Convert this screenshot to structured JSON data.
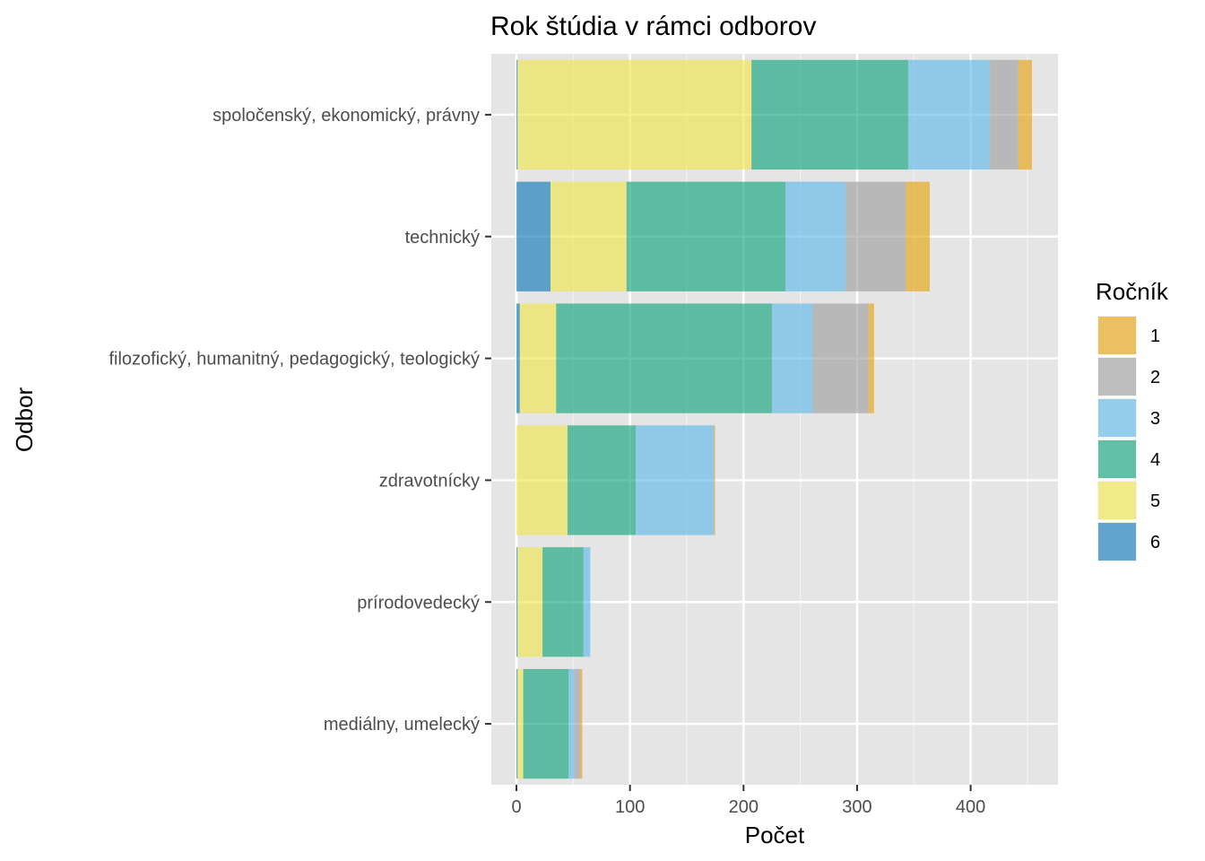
{
  "chart_data": {
    "type": "bar",
    "orientation": "horizontal",
    "stacked": true,
    "title": "Rok štúdia v rámci odborov",
    "xlabel": "Počet",
    "ylabel": "Odbor",
    "xlim": [
      0,
      475
    ],
    "x_ticks": [
      0,
      100,
      200,
      300,
      400
    ],
    "grid": true,
    "categories": [
      "spoločenský, ekonomický, právny",
      "technický",
      "filozofický, humanitný, pedagogický, teologický",
      "zdravotnícky",
      "prírodovedecký",
      "mediálny, umelecký"
    ],
    "stack_order": [
      "6",
      "5",
      "4",
      "3",
      "2",
      "1"
    ],
    "series": [
      {
        "name": "1",
        "color": "#E69F00",
        "values": [
          12,
          21,
          5,
          1,
          0,
          2
        ]
      },
      {
        "name": "2",
        "color": "#999999",
        "values": [
          25,
          53,
          49,
          0,
          0,
          5
        ]
      },
      {
        "name": "3",
        "color": "#56B4E9",
        "values": [
          72,
          53,
          36,
          69,
          6,
          5
        ]
      },
      {
        "name": "4",
        "color": "#009E73",
        "values": [
          138,
          140,
          190,
          60,
          36,
          40
        ]
      },
      {
        "name": "5",
        "color": "#F0E442",
        "values": [
          206,
          67,
          32,
          45,
          22,
          5
        ]
      },
      {
        "name": "6",
        "color": "#0072B2",
        "values": [
          1,
          30,
          3,
          0,
          1,
          1
        ]
      }
    ],
    "legend": {
      "title": "Ročník",
      "position": "right",
      "entries": [
        "1",
        "2",
        "3",
        "4",
        "5",
        "6"
      ]
    },
    "colors": {
      "panel_background": "#E5E5E5",
      "grid_major": "#FFFFFF",
      "bar_opacity": 0.6
    }
  }
}
